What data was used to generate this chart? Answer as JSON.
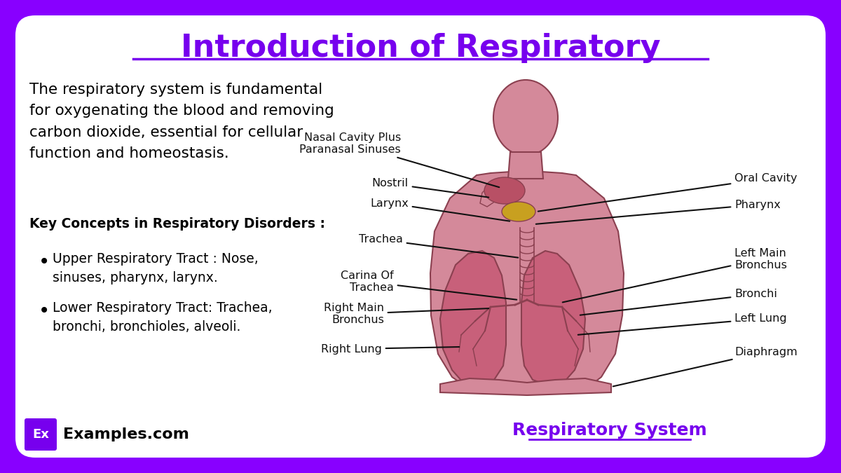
{
  "title": "Introduction of Respiratory",
  "bg_outer": "#8800ff",
  "bg_inner": "#ffffff",
  "title_color": "#7700ee",
  "body_text": "The respiratory system is fundamental\nfor oxygenating the blood and removing\ncarbon dioxide, essential for cellular\nfunction and homeostasis.",
  "key_concepts_title": "Key Concepts in Respiratory Disorders :",
  "bullet_points": [
    "Upper Respiratory Tract : Nose,\nsinuses, pharynx, larynx.",
    "Lower Respiratory Tract: Trachea,\nbronchi, bronchioles, alveoli."
  ],
  "footer_logo_text": "Ex",
  "footer_brand": "Examples.com",
  "footer_caption": "Respiratory System",
  "footer_caption_color": "#7700ee",
  "label_color": "#111111",
  "arrow_color": "#111111",
  "body_color": "#d4899a",
  "body_edge_color": "#8B4050",
  "lung_color": "#c8607a",
  "nasal_color": "#b85065",
  "oral_color": "#c8a020"
}
